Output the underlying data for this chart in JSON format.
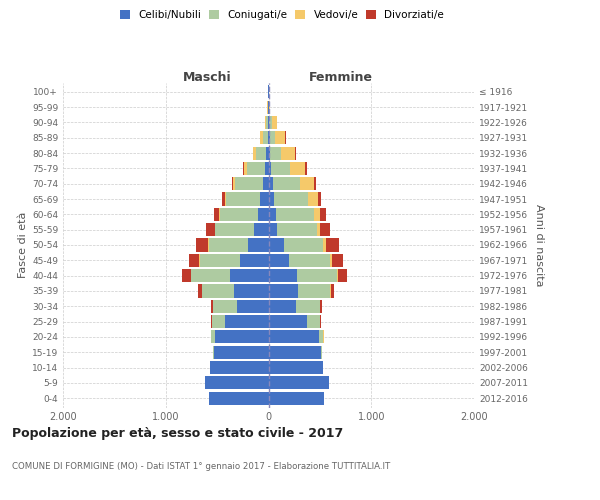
{
  "age_groups": [
    "0-4",
    "5-9",
    "10-14",
    "15-19",
    "20-24",
    "25-29",
    "30-34",
    "35-39",
    "40-44",
    "45-49",
    "50-54",
    "55-59",
    "60-64",
    "65-69",
    "70-74",
    "75-79",
    "80-84",
    "85-89",
    "90-94",
    "95-99",
    "100+"
  ],
  "birth_years": [
    "2012-2016",
    "2007-2011",
    "2002-2006",
    "1997-2001",
    "1992-1996",
    "1987-1991",
    "1982-1986",
    "1977-1981",
    "1972-1976",
    "1967-1971",
    "1962-1966",
    "1957-1961",
    "1952-1956",
    "1947-1951",
    "1942-1946",
    "1937-1941",
    "1932-1936",
    "1927-1931",
    "1922-1926",
    "1917-1921",
    "≤ 1916"
  ],
  "maschi": {
    "celibi": [
      580,
      620,
      570,
      530,
      520,
      420,
      310,
      340,
      370,
      280,
      200,
      140,
      100,
      80,
      55,
      30,
      20,
      8,
      5,
      3,
      2
    ],
    "coniugati": [
      0,
      0,
      0,
      10,
      40,
      130,
      230,
      310,
      380,
      390,
      380,
      380,
      370,
      330,
      270,
      180,
      100,
      50,
      20,
      5,
      2
    ],
    "vedovi": [
      0,
      0,
      0,
      0,
      0,
      1,
      1,
      2,
      3,
      5,
      5,
      5,
      10,
      15,
      20,
      25,
      30,
      20,
      10,
      3,
      1
    ],
    "divorziati": [
      0,
      0,
      0,
      2,
      3,
      5,
      15,
      30,
      85,
      95,
      120,
      80,
      55,
      25,
      15,
      10,
      5,
      3,
      2,
      0,
      0
    ]
  },
  "femmine": {
    "nubili": [
      540,
      590,
      530,
      510,
      490,
      370,
      270,
      290,
      280,
      200,
      150,
      80,
      70,
      55,
      40,
      20,
      15,
      10,
      5,
      3,
      2
    ],
    "coniugate": [
      0,
      0,
      0,
      10,
      45,
      130,
      230,
      310,
      390,
      400,
      380,
      390,
      370,
      330,
      270,
      190,
      110,
      55,
      25,
      5,
      2
    ],
    "vedove": [
      0,
      0,
      0,
      0,
      1,
      2,
      3,
      5,
      8,
      15,
      25,
      35,
      60,
      95,
      130,
      150,
      130,
      100,
      50,
      10,
      2
    ],
    "divorziate": [
      0,
      0,
      0,
      2,
      3,
      5,
      15,
      30,
      90,
      110,
      130,
      90,
      60,
      30,
      20,
      15,
      8,
      5,
      3,
      1,
      0
    ]
  },
  "colors": {
    "celibi": "#4472C4",
    "coniugati": "#AECBA1",
    "vedovi": "#F5C96A",
    "divorziati": "#C0392B"
  },
  "xlim": 2000,
  "title": "Popolazione per età, sesso e stato civile - 2017",
  "subtitle": "COMUNE DI FORMIGINE (MO) - Dati ISTAT 1° gennaio 2017 - Elaborazione TUTTITALIA.IT",
  "ylabel_left": "Fasce di età",
  "ylabel_right": "Anni di nascita",
  "xlabel_left": "Maschi",
  "xlabel_right": "Femmine"
}
